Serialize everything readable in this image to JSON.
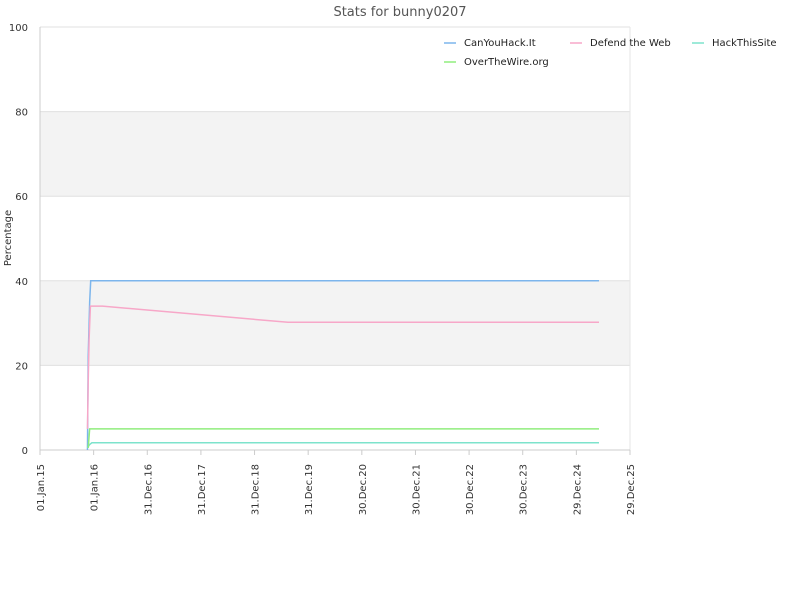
{
  "chart_data": {
    "type": "line",
    "title": "Stats for bunny0207",
    "xlabel": "",
    "ylabel": "Percentage",
    "ylim": [
      0,
      100
    ],
    "xlim": [
      "2015-01-01",
      "2025-12-29"
    ],
    "yticks": [
      "0",
      "20",
      "40",
      "60",
      "80",
      "100"
    ],
    "xticks": [
      {
        "label": "01.Jan.15",
        "date": "2015-01-01"
      },
      {
        "label": "01.Jan.16",
        "date": "2016-01-01"
      },
      {
        "label": "31.Dec.16",
        "date": "2016-12-31"
      },
      {
        "label": "31.Dec.17",
        "date": "2017-12-31"
      },
      {
        "label": "31.Dec.18",
        "date": "2018-12-31"
      },
      {
        "label": "31.Dec.19",
        "date": "2019-12-31"
      },
      {
        "label": "30.Dec.20",
        "date": "2020-12-30"
      },
      {
        "label": "30.Dec.21",
        "date": "2021-12-30"
      },
      {
        "label": "30.Dec.22",
        "date": "2022-12-30"
      },
      {
        "label": "30.Dec.23",
        "date": "2023-12-30"
      },
      {
        "label": "29.Dec.24",
        "date": "2024-12-29"
      },
      {
        "label": "29.Dec.25",
        "date": "2025-12-29"
      }
    ],
    "grid": "horizontal bands",
    "legend_position": "top-right",
    "series": [
      {
        "name": "CanYouHack.It",
        "color": "#7cb5ec",
        "points": [
          [
            "2015-11-20",
            0
          ],
          [
            "2015-11-25",
            22
          ],
          [
            "2015-12-05",
            35
          ],
          [
            "2015-12-12",
            40
          ],
          [
            "2025-06-01",
            40
          ]
        ]
      },
      {
        "name": "Defend the Web",
        "color": "#f7a7c8",
        "points": [
          [
            "2015-11-20",
            5
          ],
          [
            "2015-11-25",
            16
          ],
          [
            "2015-12-01",
            26
          ],
          [
            "2015-12-10",
            34
          ],
          [
            "2016-03-01",
            34
          ],
          [
            "2019-08-15",
            30.2
          ],
          [
            "2025-06-01",
            30.2
          ]
        ]
      },
      {
        "name": "HackThisSite",
        "color": "#7de3cc",
        "points": [
          [
            "2015-11-20",
            0.5
          ],
          [
            "2015-12-05",
            1.3
          ],
          [
            "2015-12-20",
            1.7
          ],
          [
            "2025-06-01",
            1.7
          ]
        ]
      },
      {
        "name": "OverTheWire.org",
        "color": "#90ed7d",
        "points": [
          [
            "2015-11-25",
            0.5
          ],
          [
            "2015-12-05",
            5
          ],
          [
            "2025-06-01",
            5
          ]
        ]
      }
    ]
  }
}
